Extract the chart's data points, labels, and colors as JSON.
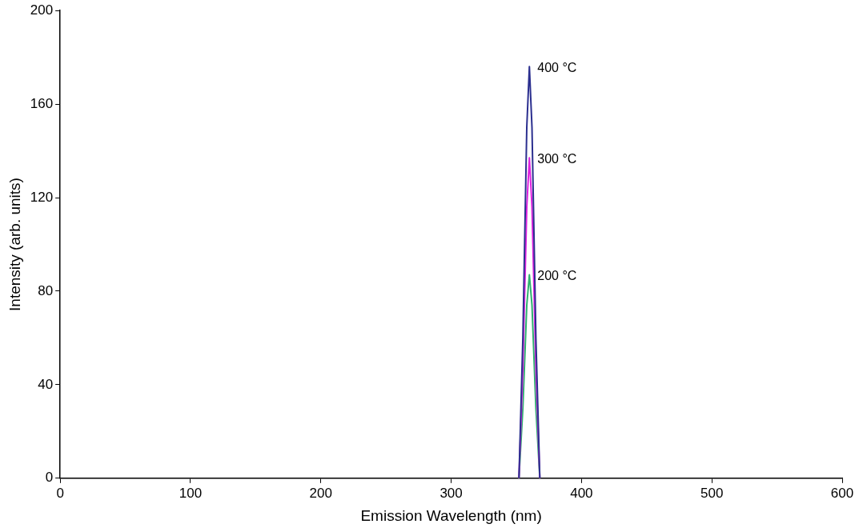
{
  "chart_data": {
    "type": "line",
    "xlabel": "Emission Wavelength (nm)",
    "ylabel": "Intensity (arb. units)",
    "xlim": [
      0,
      600
    ],
    "xticks": [
      0,
      100,
      200,
      300,
      400,
      500,
      600
    ],
    "ylim": [
      0,
      200
    ],
    "yticks": [
      0,
      40,
      80,
      120,
      160,
      200
    ],
    "grid": false,
    "legend": false,
    "marker": "none",
    "line_style": "solid",
    "x": [
      352,
      355,
      358,
      360,
      362,
      365,
      368
    ],
    "series": [
      {
        "name": "400 °C",
        "color": "#2b2f8f",
        "values": [
          0,
          60,
          150,
          176,
          150,
          60,
          0
        ]
      },
      {
        "name": "300 °C",
        "color": "#e020e0",
        "values": [
          0,
          47,
          116,
          137,
          116,
          47,
          0
        ]
      },
      {
        "name": "200 °C",
        "color": "#2fb070",
        "values": [
          0,
          30,
          74,
          87,
          74,
          30,
          0
        ]
      }
    ]
  }
}
